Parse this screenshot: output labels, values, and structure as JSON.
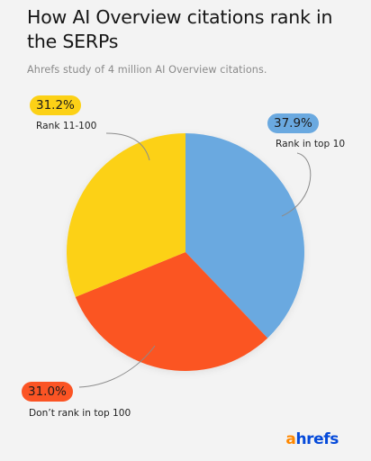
{
  "chart_data": {
    "type": "pie",
    "title": "How AI Overview citations rank in the SERPs",
    "subtitle": "Ahrefs study of 4 million AI Overview citations.",
    "slices": [
      {
        "label": "Rank in top 10",
        "value": 37.9,
        "display": "37.9%",
        "color": "#6aa9e0"
      },
      {
        "label": "Don’t rank in top 100",
        "value": 31.0,
        "display": "31.0%",
        "color": "#fb5424"
      },
      {
        "label": "Rank 11-100",
        "value": 31.2,
        "display": "31.2%",
        "color": "#fcd116"
      }
    ],
    "start": "top, clockwise",
    "legend": "callouts"
  },
  "brand": {
    "logo_a": "a",
    "logo_rest": "hrefs"
  }
}
